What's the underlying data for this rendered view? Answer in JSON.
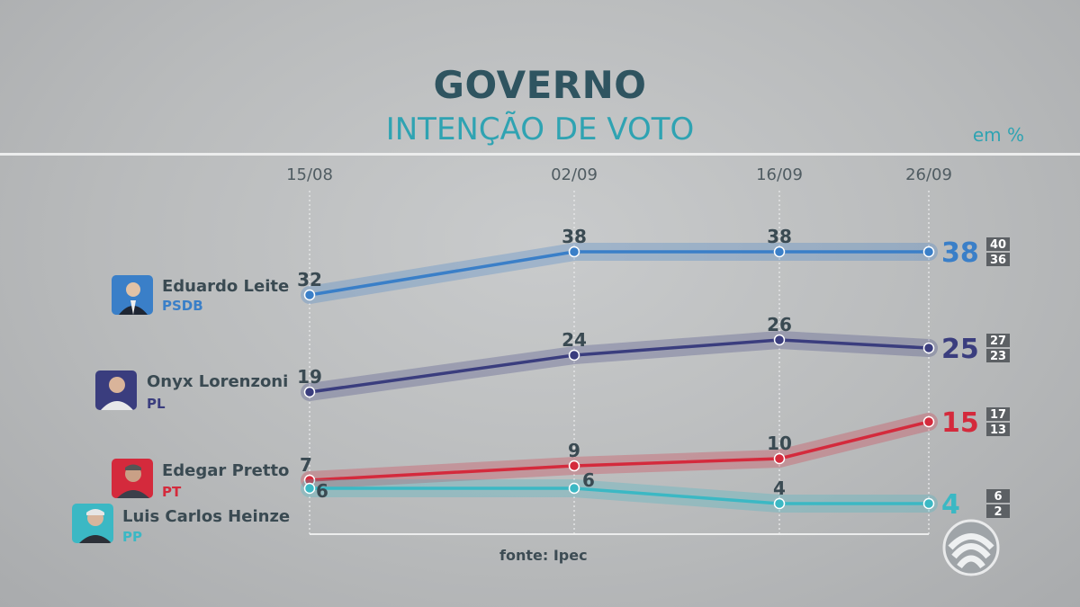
{
  "header": {
    "title": "GOVERNO",
    "subtitle": "INTENÇÃO DE VOTO",
    "unit": "em %"
  },
  "source": "fonte: Ipec",
  "candidates": [
    {
      "name": "Eduardo Leite",
      "party": "PSDB",
      "color": "#3a7fc8"
    },
    {
      "name": "Onyx Lorenzoni",
      "party": "PL",
      "color": "#3a3d7e"
    },
    {
      "name": "Edegar Pretto",
      "party": "PT",
      "color": "#d42a3c"
    },
    {
      "name": "Luis Carlos Heinze",
      "party": "PP",
      "color": "#3bb8c4"
    }
  ],
  "chart_data": {
    "type": "line",
    "title": "GOVERNO",
    "subtitle": "INTENÇÃO DE VOTO",
    "x": [
      "15/08",
      "02/09",
      "16/09",
      "26/09"
    ],
    "ylabel": "em %",
    "series": [
      {
        "name": "Eduardo Leite",
        "party": "PSDB",
        "values": [
          32,
          38,
          38,
          38
        ],
        "range": [
          40,
          36
        ],
        "color": "#3a7fc8"
      },
      {
        "name": "Onyx Lorenzoni",
        "party": "PL",
        "values": [
          19,
          24,
          26,
          25
        ],
        "range": [
          27,
          23
        ],
        "color": "#3a3d7e"
      },
      {
        "name": "Edegar Pretto",
        "party": "PT",
        "values": [
          7,
          9,
          10,
          15
        ],
        "range": [
          17,
          13
        ],
        "color": "#d42a3c"
      },
      {
        "name": "Luis Carlos Heinze",
        "party": "PP",
        "values": [
          6,
          6,
          4,
          4
        ],
        "range": [
          6,
          2
        ],
        "color": "#3bb8c4"
      }
    ],
    "source": "fonte: Ipec"
  }
}
